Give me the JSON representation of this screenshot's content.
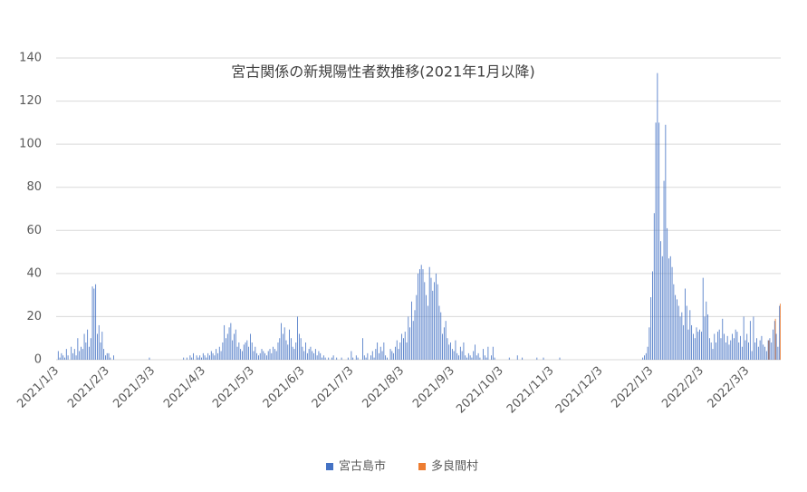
{
  "chart_data": {
    "type": "bar",
    "title": "宮古関係の新規陽性者数推移(2021年1月以降)",
    "categories": [
      "2021/1/3",
      null,
      null,
      null,
      null,
      null,
      null,
      null,
      null,
      null,
      null,
      null,
      null,
      null,
      null,
      null,
      null,
      null,
      null,
      null,
      null,
      null,
      null,
      null,
      null,
      null,
      null,
      null,
      null,
      null,
      null,
      "2021/2/3",
      null,
      null,
      null,
      null,
      null,
      null,
      null,
      null,
      null,
      null,
      null,
      null,
      null,
      null,
      null,
      null,
      null,
      null,
      null,
      null,
      null,
      null,
      null,
      null,
      null,
      null,
      null,
      "2021/3/3",
      null,
      null,
      null,
      null,
      null,
      null,
      null,
      null,
      null,
      null,
      null,
      null,
      null,
      null,
      null,
      null,
      null,
      null,
      null,
      null,
      null,
      null,
      null,
      null,
      null,
      null,
      null,
      null,
      null,
      null,
      "2021/4/3",
      null,
      null,
      null,
      null,
      null,
      null,
      null,
      null,
      null,
      null,
      null,
      null,
      null,
      null,
      null,
      null,
      null,
      null,
      null,
      null,
      null,
      null,
      null,
      null,
      null,
      null,
      null,
      null,
      null,
      "2021/5/3",
      null,
      null,
      null,
      null,
      null,
      null,
      null,
      null,
      null,
      null,
      null,
      null,
      null,
      null,
      null,
      null,
      null,
      null,
      null,
      null,
      null,
      null,
      null,
      null,
      null,
      null,
      null,
      null,
      null,
      null,
      "2021/6/3",
      null,
      null,
      null,
      null,
      null,
      null,
      null,
      null,
      null,
      null,
      null,
      null,
      null,
      null,
      null,
      null,
      null,
      null,
      null,
      null,
      null,
      null,
      null,
      null,
      null,
      null,
      null,
      null,
      null,
      "2021/7/3",
      null,
      null,
      null,
      null,
      null,
      null,
      null,
      null,
      null,
      null,
      null,
      null,
      null,
      null,
      null,
      null,
      null,
      null,
      null,
      null,
      null,
      null,
      null,
      null,
      null,
      null,
      null,
      null,
      null,
      null,
      "2021/8/3",
      null,
      null,
      null,
      null,
      null,
      null,
      null,
      null,
      null,
      null,
      null,
      null,
      null,
      null,
      null,
      null,
      null,
      null,
      null,
      null,
      null,
      null,
      null,
      null,
      null,
      null,
      null,
      null,
      null,
      null,
      "2021/9/3",
      null,
      null,
      null,
      null,
      null,
      null,
      null,
      null,
      null,
      null,
      null,
      null,
      null,
      null,
      null,
      null,
      null,
      null,
      null,
      null,
      null,
      null,
      null,
      null,
      null,
      null,
      null,
      null,
      null,
      "2021/10/3",
      null,
      null,
      null,
      null,
      null,
      null,
      null,
      null,
      null,
      null,
      null,
      null,
      null,
      null,
      null,
      null,
      null,
      null,
      null,
      null,
      null,
      null,
      null,
      null,
      null,
      null,
      null,
      null,
      null,
      null,
      "2021/11/3",
      null,
      null,
      null,
      null,
      null,
      null,
      null,
      null,
      null,
      null,
      null,
      null,
      null,
      null,
      null,
      null,
      null,
      null,
      null,
      null,
      null,
      null,
      null,
      null,
      null,
      null,
      null,
      null,
      null,
      "2021/12/3",
      null,
      null,
      null,
      null,
      null,
      null,
      null,
      null,
      null,
      null,
      null,
      null,
      null,
      null,
      null,
      null,
      null,
      null,
      null,
      null,
      null,
      null,
      null,
      null,
      null,
      null,
      null,
      null,
      null,
      null,
      "2022/1/3",
      null,
      null,
      null,
      null,
      null,
      null,
      null,
      null,
      null,
      null,
      null,
      null,
      null,
      null,
      null,
      null,
      null,
      null,
      null,
      null,
      null,
      null,
      null,
      null,
      null,
      null,
      null,
      null,
      null,
      null,
      "2022/2/3",
      null,
      null,
      null,
      null,
      null,
      null,
      null,
      null,
      null,
      null,
      null,
      null,
      null,
      null,
      null,
      null,
      null,
      null,
      null,
      null,
      null,
      null,
      null,
      null,
      null,
      null,
      null,
      "2022/3/3",
      null,
      null,
      null,
      null,
      null,
      null,
      null,
      null,
      null,
      null,
      null,
      null,
      null,
      null,
      null,
      null,
      null,
      null,
      null,
      null
    ],
    "series": [
      {
        "name": "宮古島市",
        "color": "#4472c4",
        "values": [
          0,
          4,
          1,
          3,
          2,
          1,
          5,
          2,
          0,
          6,
          3,
          5,
          2,
          10,
          4,
          6,
          5,
          12,
          8,
          14,
          6,
          10,
          34,
          33,
          35,
          12,
          16,
          8,
          13,
          5,
          2,
          3,
          3,
          1,
          0,
          2,
          0,
          0,
          0,
          0,
          0,
          0,
          0,
          0,
          0,
          0,
          0,
          0,
          0,
          0,
          0,
          0,
          0,
          0,
          0,
          0,
          0,
          1,
          0,
          0,
          0,
          0,
          0,
          0,
          0,
          0,
          0,
          0,
          0,
          0,
          0,
          0,
          0,
          0,
          0,
          0,
          0,
          0,
          1,
          0,
          1,
          0,
          2,
          1,
          3,
          0,
          2,
          1,
          2,
          1,
          3,
          2,
          1,
          3,
          2,
          4,
          3,
          2,
          5,
          3,
          6,
          4,
          8,
          16,
          10,
          12,
          15,
          17,
          9,
          12,
          14,
          6,
          8,
          5,
          4,
          7,
          8,
          9,
          6,
          12,
          8,
          4,
          6,
          3,
          2,
          3,
          5,
          4,
          3,
          2,
          4,
          5,
          3,
          6,
          5,
          4,
          8,
          10,
          17,
          12,
          15,
          9,
          7,
          14,
          10,
          6,
          5,
          8,
          20,
          12,
          10,
          6,
          4,
          8,
          3,
          5,
          6,
          4,
          3,
          5,
          2,
          4,
          3,
          1,
          2,
          1,
          0,
          1,
          0,
          1,
          2,
          0,
          1,
          0,
          0,
          1,
          0,
          0,
          0,
          1,
          0,
          4,
          1,
          0,
          2,
          1,
          0,
          0,
          10,
          2,
          1,
          3,
          0,
          2,
          4,
          1,
          5,
          8,
          3,
          6,
          4,
          8,
          2,
          1,
          0,
          5,
          4,
          3,
          6,
          9,
          5,
          8,
          12,
          10,
          13,
          8,
          20,
          15,
          27,
          18,
          23,
          30,
          40,
          42,
          44,
          42,
          36,
          30,
          25,
          43,
          38,
          32,
          36,
          40,
          35,
          25,
          22,
          12,
          15,
          18,
          10,
          7,
          8,
          5,
          4,
          9,
          3,
          2,
          6,
          4,
          8,
          2,
          1,
          3,
          2,
          1,
          4,
          7,
          2,
          3,
          1,
          0,
          5,
          2,
          1,
          6,
          0,
          2,
          6,
          1,
          0,
          0,
          0,
          0,
          0,
          0,
          0,
          0,
          1,
          0,
          0,
          0,
          0,
          2,
          0,
          0,
          1,
          0,
          0,
          0,
          0,
          0,
          0,
          0,
          0,
          1,
          0,
          0,
          0,
          1,
          0,
          0,
          0,
          0,
          0,
          0,
          0,
          0,
          0,
          1,
          0,
          0,
          0,
          0,
          0,
          0,
          0,
          0,
          0,
          0,
          0,
          0,
          0,
          0,
          0,
          0,
          0,
          0,
          0,
          0,
          0,
          0,
          0,
          0,
          0,
          0,
          0,
          0,
          0,
          0,
          0,
          0,
          0,
          0,
          0,
          0,
          0,
          0,
          0,
          0,
          0,
          0,
          0,
          0,
          0,
          0,
          0,
          0,
          0,
          0,
          1,
          2,
          3,
          6,
          15,
          29,
          41,
          68,
          110,
          133,
          110,
          55,
          48,
          83,
          109,
          61,
          47,
          48,
          43,
          35,
          30,
          28,
          25,
          20,
          22,
          16,
          33,
          25,
          14,
          23,
          16,
          12,
          10,
          15,
          13,
          14,
          13,
          38,
          20,
          27,
          21,
          10,
          8,
          5,
          12,
          8,
          13,
          14,
          10,
          19,
          12,
          8,
          11,
          7,
          9,
          12,
          10,
          14,
          13,
          8,
          11,
          6,
          20,
          9,
          12,
          8,
          18,
          4,
          20,
          8,
          10,
          6,
          9,
          11,
          7,
          6,
          4,
          9,
          10,
          8,
          14,
          18,
          12,
          6,
          25
        ]
      },
      {
        "name": "多良間村",
        "color": "#ed7d31",
        "values": [
          0,
          0,
          0,
          0,
          0,
          0,
          0,
          0,
          0,
          0,
          0,
          0,
          0,
          0,
          0,
          0,
          0,
          0,
          0,
          0,
          0,
          0,
          0,
          0,
          0,
          0,
          0,
          0,
          0,
          0,
          0,
          0,
          0,
          0,
          0,
          0,
          0,
          0,
          0,
          0,
          0,
          0,
          0,
          0,
          0,
          0,
          0,
          0,
          0,
          0,
          0,
          0,
          0,
          0,
          0,
          0,
          0,
          0,
          0,
          0,
          0,
          0,
          0,
          0,
          0,
          0,
          0,
          0,
          0,
          0,
          0,
          0,
          0,
          0,
          0,
          0,
          0,
          0,
          0,
          0,
          0,
          0,
          0,
          0,
          0,
          0,
          0,
          0,
          0,
          0,
          0,
          0,
          0,
          0,
          0,
          0,
          0,
          0,
          0,
          0,
          0,
          0,
          0,
          0,
          0,
          0,
          0,
          0,
          0,
          0,
          0,
          0,
          0,
          0,
          0,
          0,
          0,
          0,
          0,
          0,
          0,
          0,
          0,
          0,
          0,
          0,
          0,
          0,
          0,
          0,
          0,
          0,
          0,
          0,
          0,
          0,
          0,
          0,
          0,
          0,
          0,
          0,
          0,
          0,
          0,
          0,
          0,
          0,
          0,
          0,
          0,
          0,
          0,
          0,
          0,
          0,
          0,
          0,
          0,
          0,
          0,
          0,
          0,
          0,
          0,
          0,
          0,
          0,
          0,
          0,
          0,
          0,
          0,
          0,
          0,
          0,
          0,
          0,
          0,
          0,
          0,
          0,
          0,
          0,
          0,
          0,
          0,
          0,
          0,
          0,
          0,
          0,
          0,
          0,
          0,
          0,
          0,
          0,
          0,
          0,
          0,
          0,
          0,
          0,
          0,
          0,
          0,
          0,
          0,
          0,
          0,
          0,
          0,
          0,
          0,
          0,
          0,
          0,
          0,
          0,
          0,
          0,
          0,
          0,
          0,
          0,
          0,
          0,
          0,
          0,
          0,
          0,
          0,
          0,
          0,
          0,
          0,
          0,
          0,
          0,
          0,
          0,
          0,
          0,
          0,
          0,
          0,
          0,
          0,
          0,
          0,
          0,
          0,
          0,
          0,
          0,
          0,
          0,
          0,
          0,
          0,
          0,
          0,
          0,
          0,
          0,
          0,
          0,
          0,
          0,
          0,
          0,
          0,
          0,
          0,
          0,
          0,
          0,
          0,
          0,
          0,
          0,
          0,
          0,
          0,
          0,
          0,
          0,
          0,
          0,
          0,
          0,
          0,
          0,
          0,
          0,
          0,
          0,
          0,
          0,
          0,
          0,
          0,
          0,
          0,
          0,
          0,
          0,
          0,
          0,
          0,
          0,
          0,
          0,
          0,
          0,
          0,
          0,
          0,
          0,
          0,
          0,
          0,
          0,
          0,
          0,
          0,
          0,
          0,
          0,
          0,
          0,
          0,
          0,
          0,
          0,
          0,
          0,
          0,
          0,
          0,
          0,
          0,
          0,
          0,
          0,
          0,
          0,
          0,
          0,
          0,
          0,
          0,
          0,
          0,
          0,
          0,
          0,
          0,
          0,
          0,
          0,
          0,
          0,
          0,
          0,
          0,
          0,
          0,
          0,
          0,
          0,
          0,
          0,
          0,
          0,
          0,
          0,
          0,
          0,
          0,
          0,
          0,
          0,
          0,
          0,
          0,
          0,
          0,
          0,
          0,
          0,
          0,
          0,
          0,
          0,
          0,
          0,
          0,
          0,
          0,
          0,
          0,
          0,
          0,
          0,
          0,
          0,
          0,
          0,
          0,
          0,
          0,
          0,
          0,
          0,
          0,
          0,
          0,
          0,
          0,
          0,
          0,
          0,
          0,
          0,
          0,
          0,
          0,
          0,
          0,
          0,
          0,
          0,
          0,
          0,
          0,
          9,
          0,
          0,
          0,
          19,
          0,
          0,
          26
        ]
      }
    ],
    "ylim": [
      0,
      140
    ],
    "yticks": [
      0,
      20,
      40,
      60,
      80,
      100,
      120,
      140
    ],
    "grid": true,
    "legend": "bottom"
  }
}
